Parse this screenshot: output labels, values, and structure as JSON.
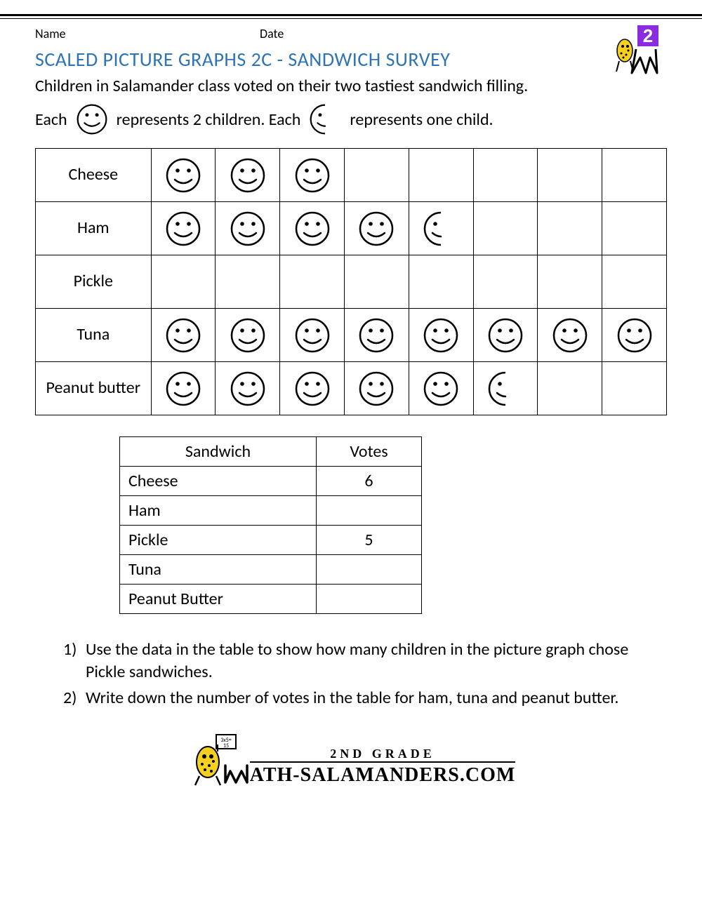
{
  "meta": {
    "name_label": "Name",
    "date_label": "Date"
  },
  "title": "SCALED PICTURE GRAPHS 2C - SANDWICH SURVEY",
  "intro": "Children in Salamander class voted on their two tastiest sandwich filling.",
  "legend": {
    "each1": "Each",
    "rep1": "represents 2 children. Each",
    "rep2": "represents one child."
  },
  "picture_graph": {
    "columns": 8,
    "rows": [
      {
        "label": "Cheese",
        "full": 3,
        "half": 0
      },
      {
        "label": "Ham",
        "full": 4,
        "half": 1
      },
      {
        "label": "Pickle",
        "full": 0,
        "half": 0
      },
      {
        "label": "Tuna",
        "full": 8,
        "half": 0
      },
      {
        "label": "Peanut butter",
        "full": 5,
        "half": 1
      }
    ]
  },
  "votes_table": {
    "headers": {
      "sandwich": "Sandwich",
      "votes": "Votes"
    },
    "rows": [
      {
        "sandwich": "Cheese",
        "votes": "6"
      },
      {
        "sandwich": "Ham",
        "votes": ""
      },
      {
        "sandwich": "Pickle",
        "votes": "5"
      },
      {
        "sandwich": "Tuna",
        "votes": ""
      },
      {
        "sandwich": "Peanut Butter",
        "votes": ""
      }
    ]
  },
  "questions": [
    "Use the data in the table to show how many children in the picture graph chose Pickle sandwiches.",
    "Write down the number of votes in the table for ham, tuna and peanut butter."
  ],
  "footer": {
    "grade": "2ND GRADE",
    "url": "ATH-SALAMANDERS.COM"
  },
  "badge": {
    "number": "2",
    "number_bg": "#8a2be2",
    "number_color": "#ffffff"
  },
  "colors": {
    "title": "#2e74b5",
    "smiley_stroke": "#000000"
  }
}
